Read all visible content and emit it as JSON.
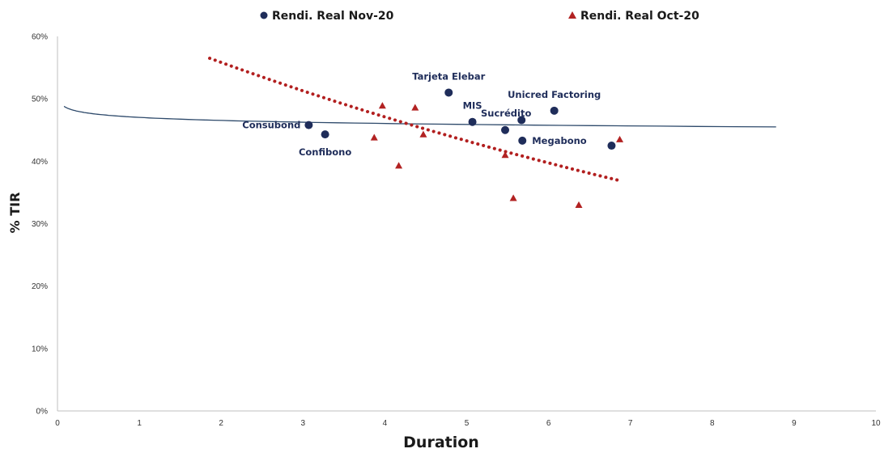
{
  "chart_data": {
    "type": "scatter",
    "xlabel": "Duration",
    "ylabel": "% TIR",
    "xlim": [
      0,
      10
    ],
    "ylim": [
      0,
      0.6
    ],
    "x_ticks": [
      0,
      1,
      2,
      3,
      4,
      5,
      6,
      7,
      8,
      9,
      10
    ],
    "y_ticks": [
      {
        "value": 0.0,
        "label": "0%"
      },
      {
        "value": 0.1,
        "label": "10%"
      },
      {
        "value": 0.2,
        "label": "20%"
      },
      {
        "value": 0.3,
        "label": "30%"
      },
      {
        "value": 0.4,
        "label": "40%"
      },
      {
        "value": 0.5,
        "label": "50%"
      },
      {
        "value": 0.6,
        "label": "60%"
      }
    ],
    "grid": false,
    "legend_position": "top",
    "series": [
      {
        "name": "Rendi. Real Nov-20",
        "marker": "circle",
        "color": "#1f2d5a",
        "points": [
          {
            "x": 3.07,
            "y": 0.458,
            "label": "Consubond",
            "label_pos": "left"
          },
          {
            "x": 3.27,
            "y": 0.443,
            "label": "Confibono",
            "label_pos": "below"
          },
          {
            "x": 4.78,
            "y": 0.51,
            "label": "Tarjeta Elebar",
            "label_pos": "above"
          },
          {
            "x": 5.07,
            "y": 0.463,
            "label": "MIS",
            "label_pos": "above"
          },
          {
            "x": 5.47,
            "y": 0.45,
            "label": "Sucrédito",
            "label_pos": "above-right"
          },
          {
            "x": 5.67,
            "y": 0.466,
            "label": null
          },
          {
            "x": 5.68,
            "y": 0.433,
            "label": "Megabono",
            "label_pos": "right"
          },
          {
            "x": 6.07,
            "y": 0.481,
            "label": "Unicred Factoring",
            "label_pos": "above"
          },
          {
            "x": 6.77,
            "y": 0.425,
            "label": null
          }
        ]
      },
      {
        "name": "Rendi. Real Oct-20",
        "marker": "triangle",
        "color": "#b22222",
        "points": [
          {
            "x": 3.87,
            "y": 0.438
          },
          {
            "x": 3.97,
            "y": 0.489
          },
          {
            "x": 4.17,
            "y": 0.393
          },
          {
            "x": 4.37,
            "y": 0.486
          },
          {
            "x": 4.47,
            "y": 0.443
          },
          {
            "x": 5.47,
            "y": 0.41
          },
          {
            "x": 5.57,
            "y": 0.341
          },
          {
            "x": 6.37,
            "y": 0.33
          },
          {
            "x": 6.87,
            "y": 0.435
          }
        ]
      }
    ],
    "trendlines": [
      {
        "series": "Rendi. Real Nov-20",
        "kind": "log",
        "color": "#2e4a6b",
        "x_start": 0.08,
        "x_end": 8.78,
        "y_start": 0.488,
        "y_end": 0.455
      },
      {
        "series": "Rendi. Real Oct-20",
        "kind": "dotted",
        "color": "#b21f1f",
        "x_start": 1.86,
        "x_end": 6.87,
        "y_start": 0.565,
        "y_end": 0.369
      }
    ]
  }
}
